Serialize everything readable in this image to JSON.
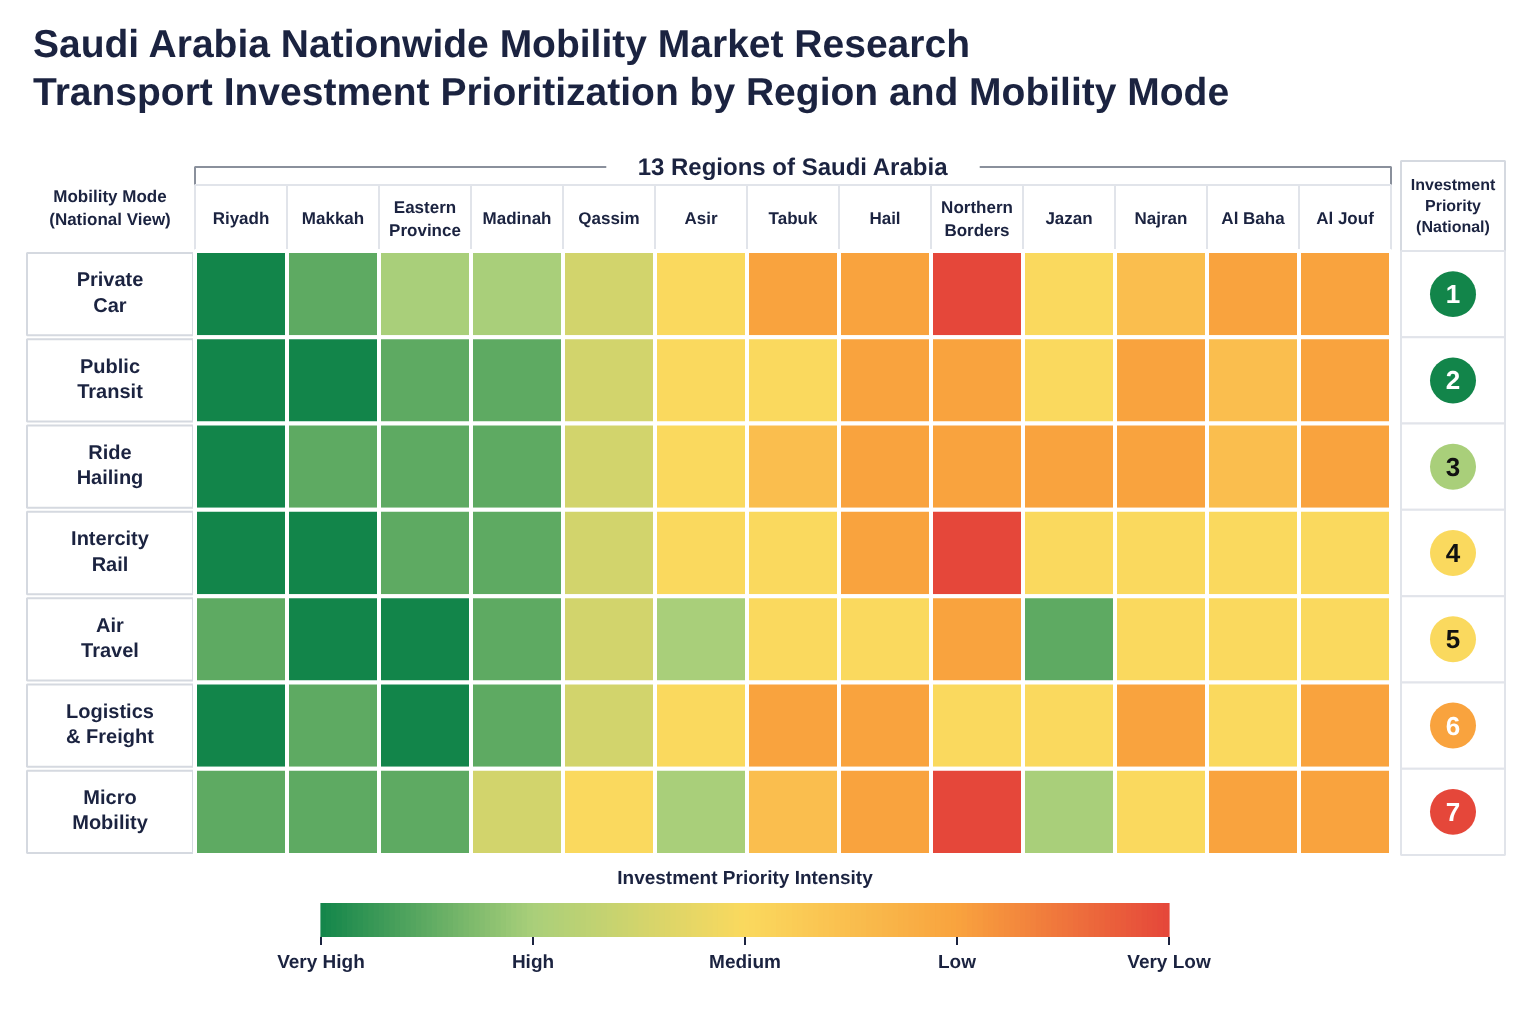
{
  "chart_data": {
    "type": "heatmap",
    "title": "Saudi  Arabia Nationwide Mobility Market Research",
    "subtitle": "Transport Investment Prioritization by Region and Mobility Mode",
    "xlabel": "13 Regions of Saudi Arabia",
    "ylabel": "Mobility Mode (National View)",
    "y2label": "Investment Priority (National)",
    "clabel": "Investment Priority Intensity",
    "categories": [
      "Riyadh",
      "Makkah",
      "Eastern Province",
      "Madinah",
      "Qassim",
      "Asir",
      "Tabuk",
      "Hail",
      "Northern Borders",
      "Jazan",
      "Najran",
      "Al Baha",
      "Al Jouf"
    ],
    "y_categories": [
      "Private Car",
      "Public Transit",
      "Ride Hailing",
      "Intercity Rail",
      "Air Travel",
      "Logistics & Freight",
      "Micro Mobility"
    ],
    "y2_categories": [
      "1",
      "2",
      "3",
      "4",
      "5",
      "6",
      "7"
    ],
    "cells": [
      [
        5,
        4.5,
        4,
        4,
        3.5,
        3,
        2,
        2,
        1,
        3,
        2.5,
        2,
        2
      ],
      [
        5,
        5,
        4.5,
        4.5,
        3.5,
        3,
        3,
        2,
        2,
        3,
        2,
        2.5,
        2
      ],
      [
        5,
        4.5,
        4.5,
        4.5,
        3.5,
        3,
        2.5,
        2,
        2,
        2,
        2,
        2.5,
        2
      ],
      [
        5,
        5,
        4.5,
        4.5,
        3.5,
        3,
        3,
        2,
        1,
        3,
        3,
        3,
        3
      ],
      [
        4.5,
        5,
        5,
        4.5,
        3.5,
        4,
        3,
        3,
        2,
        4.5,
        3,
        3,
        3
      ],
      [
        5,
        4.5,
        5,
        4.5,
        3.5,
        3,
        2,
        2,
        3,
        3,
        2,
        3,
        2
      ],
      [
        4.5,
        4.5,
        4.5,
        3.5,
        3,
        4,
        2.5,
        2,
        1,
        4,
        3,
        2,
        2
      ]
    ],
    "clim": [
      5,
      1
    ],
    "cticks": [
      {
        "value": 5,
        "label": "Very High"
      },
      {
        "value": 4,
        "label": "High"
      },
      {
        "value": 3,
        "label": "Medium"
      },
      {
        "value": 2,
        "label": "Low"
      },
      {
        "value": 1,
        "label": "Very Low"
      }
    ],
    "colors": [
      "#12854a",
      "#a9cf7a",
      "#fad95e",
      "#f9a33e",
      "#e5473a"
    ]
  }
}
